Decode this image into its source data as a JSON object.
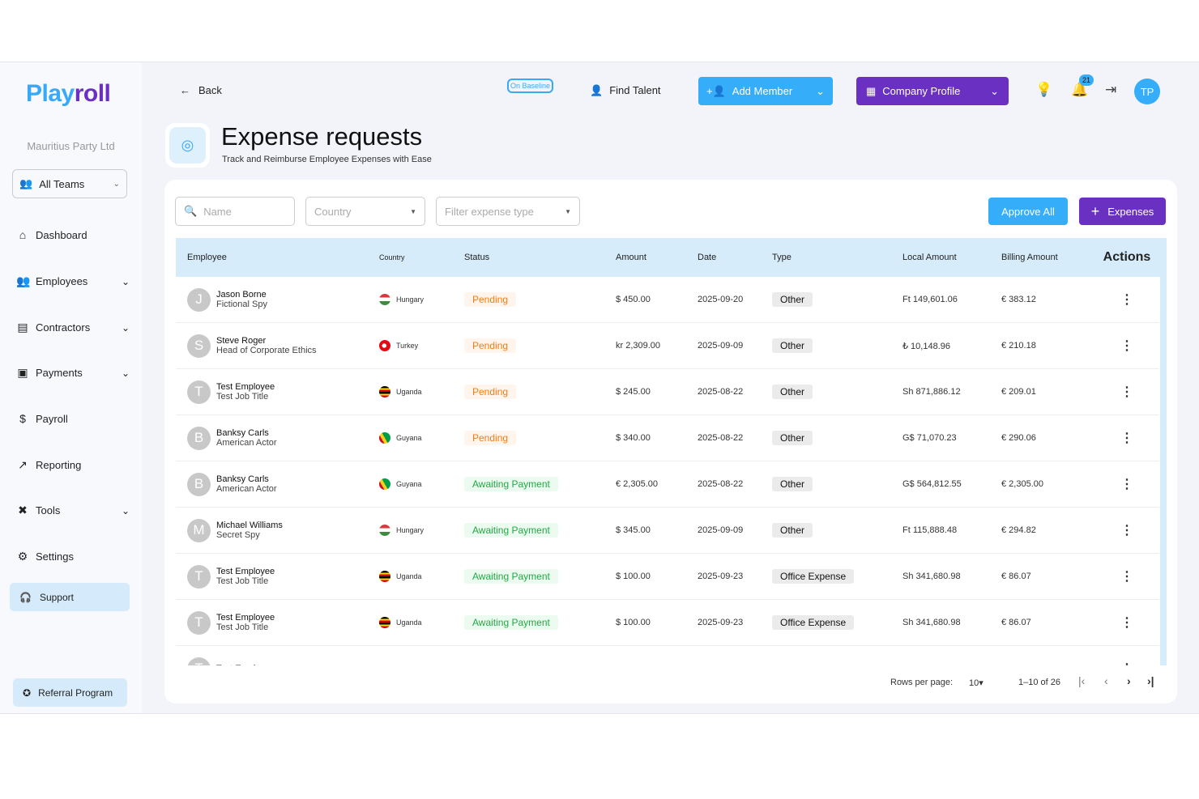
{
  "brand": {
    "part1": "Play",
    "part2": "roll"
  },
  "company": "Mauritius Party Ltd",
  "teams": "All Teams",
  "nav": [
    {
      "label": "Dashboard",
      "icon": "home-icon",
      "chev": false
    },
    {
      "label": "Employees",
      "icon": "users-icon",
      "chev": true
    },
    {
      "label": "Contractors",
      "icon": "contract-icon",
      "chev": true
    },
    {
      "label": "Payments",
      "icon": "payments-icon",
      "chev": true
    },
    {
      "label": "Payroll",
      "icon": "dollar-icon",
      "chev": false
    },
    {
      "label": "Reporting",
      "icon": "chart-line-icon",
      "chev": false
    },
    {
      "label": "Tools",
      "icon": "tools-icon",
      "chev": true
    },
    {
      "label": "Settings",
      "icon": "gear-icon",
      "chev": false
    }
  ],
  "support": "Support",
  "referral": "Referral Program",
  "topbar": {
    "back": "Back",
    "baseline": "On Baseline",
    "find_talent": "Find Talent",
    "add_member": "Add Member",
    "company_profile": "Company Profile",
    "notifications": "21",
    "avatar": "TP"
  },
  "page": {
    "title": "Expense requests",
    "subtitle": "Track and Reimburse Employee Expenses with Ease"
  },
  "filters": {
    "name": "Name",
    "country": "Country",
    "type": "Filter expense type"
  },
  "actions": {
    "approve_all": "Approve All",
    "expenses": "Expenses"
  },
  "columns": [
    "Employee",
    "Country",
    "Status",
    "Amount",
    "Date",
    "Type",
    "Local Amount",
    "Billing Amount",
    "Actions"
  ],
  "rows": [
    {
      "initial": "J",
      "name": "Jason Borne",
      "title": "Fictional Spy",
      "country": "Hungary",
      "flag": "hu",
      "status": "Pending",
      "amount": "$ 450.00",
      "date": "2025-09-20",
      "type": "Other",
      "local": "Ft 149,601.06",
      "billing": "€ 383.12"
    },
    {
      "initial": "S",
      "name": "Steve Roger",
      "title": "Head of Corporate Ethics",
      "country": "Turkey",
      "flag": "tr",
      "status": "Pending",
      "amount": "kr 2,309.00",
      "date": "2025-09-09",
      "type": "Other",
      "local": "₺ 10,148.96",
      "billing": "€ 210.18"
    },
    {
      "initial": "T",
      "name": "Test Employee",
      "title": "Test Job Title",
      "country": "Uganda",
      "flag": "ug",
      "status": "Pending",
      "amount": "$ 245.00",
      "date": "2025-08-22",
      "type": "Other",
      "local": "Sh 871,886.12",
      "billing": "€ 209.01"
    },
    {
      "initial": "B",
      "name": "Banksy Carls",
      "title": "American Actor",
      "country": "Guyana",
      "flag": "gy",
      "status": "Pending",
      "amount": "$ 340.00",
      "date": "2025-08-22",
      "type": "Other",
      "local": "G$ 71,070.23",
      "billing": "€ 290.06"
    },
    {
      "initial": "B",
      "name": "Banksy Carls",
      "title": "American Actor",
      "country": "Guyana",
      "flag": "gy",
      "status": "Awaiting Payment",
      "amount": "€ 2,305.00",
      "date": "2025-08-22",
      "type": "Other",
      "local": "G$ 564,812.55",
      "billing": "€ 2,305.00"
    },
    {
      "initial": "M",
      "name": "Michael Williams",
      "title": "Secret Spy",
      "country": "Hungary",
      "flag": "hu",
      "status": "Awaiting Payment",
      "amount": "$ 345.00",
      "date": "2025-09-09",
      "type": "Other",
      "local": "Ft 115,888.48",
      "billing": "€ 294.82"
    },
    {
      "initial": "T",
      "name": "Test Employee",
      "title": "Test Job Title",
      "country": "Uganda",
      "flag": "ug",
      "status": "Awaiting Payment",
      "amount": "$ 100.00",
      "date": "2025-09-23",
      "type": "Office Expense",
      "local": "Sh 341,680.98",
      "billing": "€ 86.07"
    },
    {
      "initial": "T",
      "name": "Test Employee",
      "title": "Test Job Title",
      "country": "Uganda",
      "flag": "ug",
      "status": "Awaiting Payment",
      "amount": "$ 100.00",
      "date": "2025-09-23",
      "type": "Office Expense",
      "local": "Sh 341,680.98",
      "billing": "€ 86.07"
    },
    {
      "initial": "T",
      "name": "Test Employee",
      "title": "",
      "country": "",
      "flag": "ug",
      "status": "",
      "amount": "",
      "date": "",
      "type": "",
      "local": "",
      "billing": ""
    }
  ],
  "pagination": {
    "rows_label": "Rows per page:",
    "rows_value": "10",
    "range": "1–10 of 26"
  }
}
